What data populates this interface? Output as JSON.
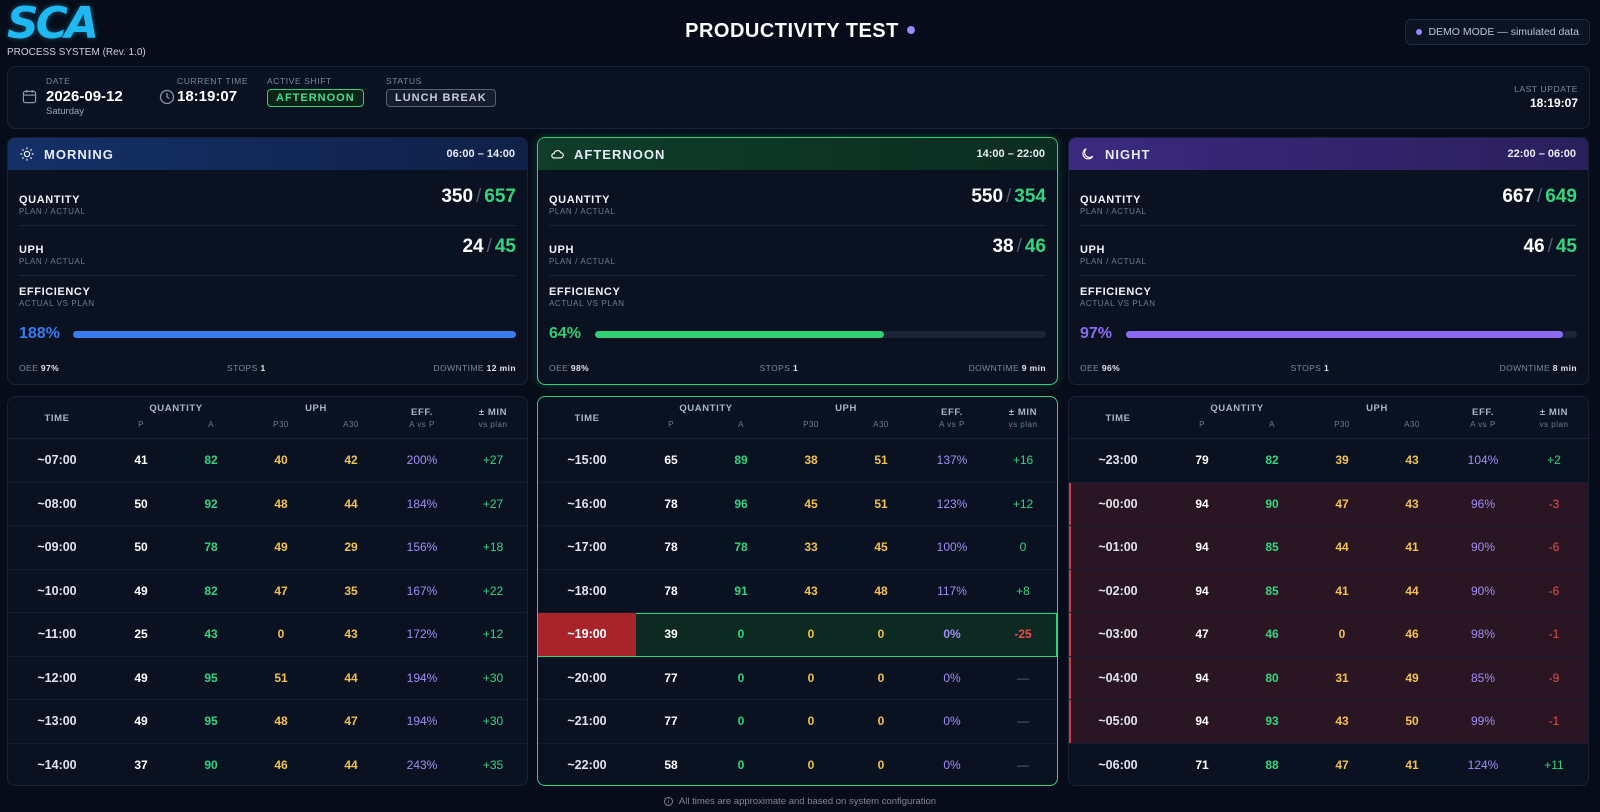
{
  "brand": {
    "logo_text": "SCA",
    "subtitle": "PROCESS SYSTEM (Rev. 1.0)"
  },
  "title": "PRODUCTIVITY TEST",
  "demo_badge": "DEMO MODE — simulated data",
  "info": {
    "date_label": "DATE",
    "date": "2026-09-12",
    "weekday": "Saturday",
    "time_label": "CURRENT TIME",
    "time": "18:19:07",
    "shift_label": "ACTIVE SHIFT",
    "shift": "AFTERNOON",
    "status_label": "STATUS",
    "status": "LUNCH BREAK",
    "update_label": "LAST UPDATE",
    "update": "18:19:07"
  },
  "labels": {
    "quantity": "QUANTITY",
    "plan_actual": "PLAN / ACTUAL",
    "uph": "UPH",
    "efficiency": "EFFICIENCY",
    "actual_vs_plan": "ACTUAL VS PLAN",
    "oee": "OEE",
    "stops": "STOPS",
    "downtime": "DOWNTIME",
    "slash": "/"
  },
  "shifts": [
    {
      "name": "MORNING",
      "hours": "06:00 – 14:00",
      "qty_plan": "350",
      "qty_actual": "657",
      "uph_plan": "24",
      "uph_actual": "45",
      "eff": "188%",
      "eff_fraction": 1.0,
      "oee": "97%",
      "stops": "1",
      "downtime": "12 min",
      "color": "#3b7bf0"
    },
    {
      "name": "AFTERNOON",
      "hours": "14:00 – 22:00",
      "qty_plan": "550",
      "qty_actual": "354",
      "uph_plan": "38",
      "uph_actual": "46",
      "eff": "64%",
      "eff_fraction": 0.64,
      "oee": "98%",
      "stops": "1",
      "downtime": "9 min",
      "color": "#2fcf74"
    },
    {
      "name": "NIGHT",
      "hours": "22:00 – 06:00",
      "qty_plan": "667",
      "qty_actual": "649",
      "uph_plan": "46",
      "uph_actual": "45",
      "eff": "97%",
      "eff_fraction": 0.97,
      "oee": "96%",
      "stops": "1",
      "downtime": "8 min",
      "color": "#8b6cf2"
    }
  ],
  "table_head": {
    "time": "TIME",
    "quantity": "QUANTITY",
    "uph": "UPH",
    "eff": "EFF.",
    "eff_sub": "A vs P",
    "min": "± MIN",
    "min_sub": "vs plan",
    "p": "P",
    "a": "A",
    "p30": "P30",
    "a30": "A30"
  },
  "tables": [
    {
      "rows": [
        {
          "time": "~07:00",
          "p": "41",
          "a": "82",
          "p30": "40",
          "a30": "42",
          "eff": "200%",
          "min": "+27"
        },
        {
          "time": "~08:00",
          "p": "50",
          "a": "92",
          "p30": "48",
          "a30": "44",
          "eff": "184%",
          "min": "+27"
        },
        {
          "time": "~09:00",
          "p": "50",
          "a": "78",
          "p30": "49",
          "a30": "29",
          "eff": "156%",
          "min": "+18"
        },
        {
          "time": "~10:00",
          "p": "49",
          "a": "82",
          "p30": "47",
          "a30": "35",
          "eff": "167%",
          "min": "+22"
        },
        {
          "time": "~11:00",
          "p": "25",
          "a": "43",
          "p30": "0",
          "a30": "43",
          "eff": "172%",
          "min": "+12"
        },
        {
          "time": "~12:00",
          "p": "49",
          "a": "95",
          "p30": "51",
          "a30": "44",
          "eff": "194%",
          "min": "+30"
        },
        {
          "time": "~13:00",
          "p": "49",
          "a": "95",
          "p30": "48",
          "a30": "47",
          "eff": "194%",
          "min": "+30"
        },
        {
          "time": "~14:00",
          "p": "37",
          "a": "90",
          "p30": "46",
          "a30": "44",
          "eff": "243%",
          "min": "+35"
        }
      ]
    },
    {
      "rows": [
        {
          "time": "~15:00",
          "p": "65",
          "a": "89",
          "p30": "38",
          "a30": "51",
          "eff": "137%",
          "min": "+16"
        },
        {
          "time": "~16:00",
          "p": "78",
          "a": "96",
          "p30": "45",
          "a30": "51",
          "eff": "123%",
          "min": "+12"
        },
        {
          "time": "~17:00",
          "p": "78",
          "a": "78",
          "p30": "33",
          "a30": "45",
          "eff": "100%",
          "min": "0"
        },
        {
          "time": "~18:00",
          "p": "78",
          "a": "91",
          "p30": "43",
          "a30": "48",
          "eff": "117%",
          "min": "+8"
        },
        {
          "time": "~19:00",
          "p": "39",
          "a": "0",
          "p30": "0",
          "a30": "0",
          "eff": "0%",
          "min": "-25",
          "current": true
        },
        {
          "time": "~20:00",
          "p": "77",
          "a": "0",
          "p30": "0",
          "a30": "0",
          "eff": "0%",
          "min": "—"
        },
        {
          "time": "~21:00",
          "p": "77",
          "a": "0",
          "p30": "0",
          "a30": "0",
          "eff": "0%",
          "min": "—"
        },
        {
          "time": "~22:00",
          "p": "58",
          "a": "0",
          "p30": "0",
          "a30": "0",
          "eff": "0%",
          "min": "—"
        }
      ]
    },
    {
      "rows": [
        {
          "time": "~23:00",
          "p": "79",
          "a": "82",
          "p30": "39",
          "a30": "43",
          "eff": "104%",
          "min": "+2"
        },
        {
          "time": "~00:00",
          "p": "94",
          "a": "90",
          "p30": "47",
          "a30": "43",
          "eff": "96%",
          "min": "-3",
          "bad": true
        },
        {
          "time": "~01:00",
          "p": "94",
          "a": "85",
          "p30": "44",
          "a30": "41",
          "eff": "90%",
          "min": "-6",
          "bad": true
        },
        {
          "time": "~02:00",
          "p": "94",
          "a": "85",
          "p30": "41",
          "a30": "44",
          "eff": "90%",
          "min": "-6",
          "bad": true
        },
        {
          "time": "~03:00",
          "p": "47",
          "a": "46",
          "p30": "0",
          "a30": "46",
          "eff": "98%",
          "min": "-1",
          "bad": true
        },
        {
          "time": "~04:00",
          "p": "94",
          "a": "80",
          "p30": "31",
          "a30": "49",
          "eff": "85%",
          "min": "-9",
          "bad": true
        },
        {
          "time": "~05:00",
          "p": "94",
          "a": "93",
          "p30": "43",
          "a30": "50",
          "eff": "99%",
          "min": "-1",
          "bad": true
        },
        {
          "time": "~06:00",
          "p": "71",
          "a": "88",
          "p30": "47",
          "a30": "41",
          "eff": "124%",
          "min": "+11"
        }
      ]
    }
  ],
  "footer_note": "All times are approximate and based on system configuration",
  "colors": {
    "accent_green": "#2fd37a",
    "accent_purple": "#9b87f5",
    "bad_red": "#f0494d",
    "logo_blue": "#1fb8f0"
  }
}
